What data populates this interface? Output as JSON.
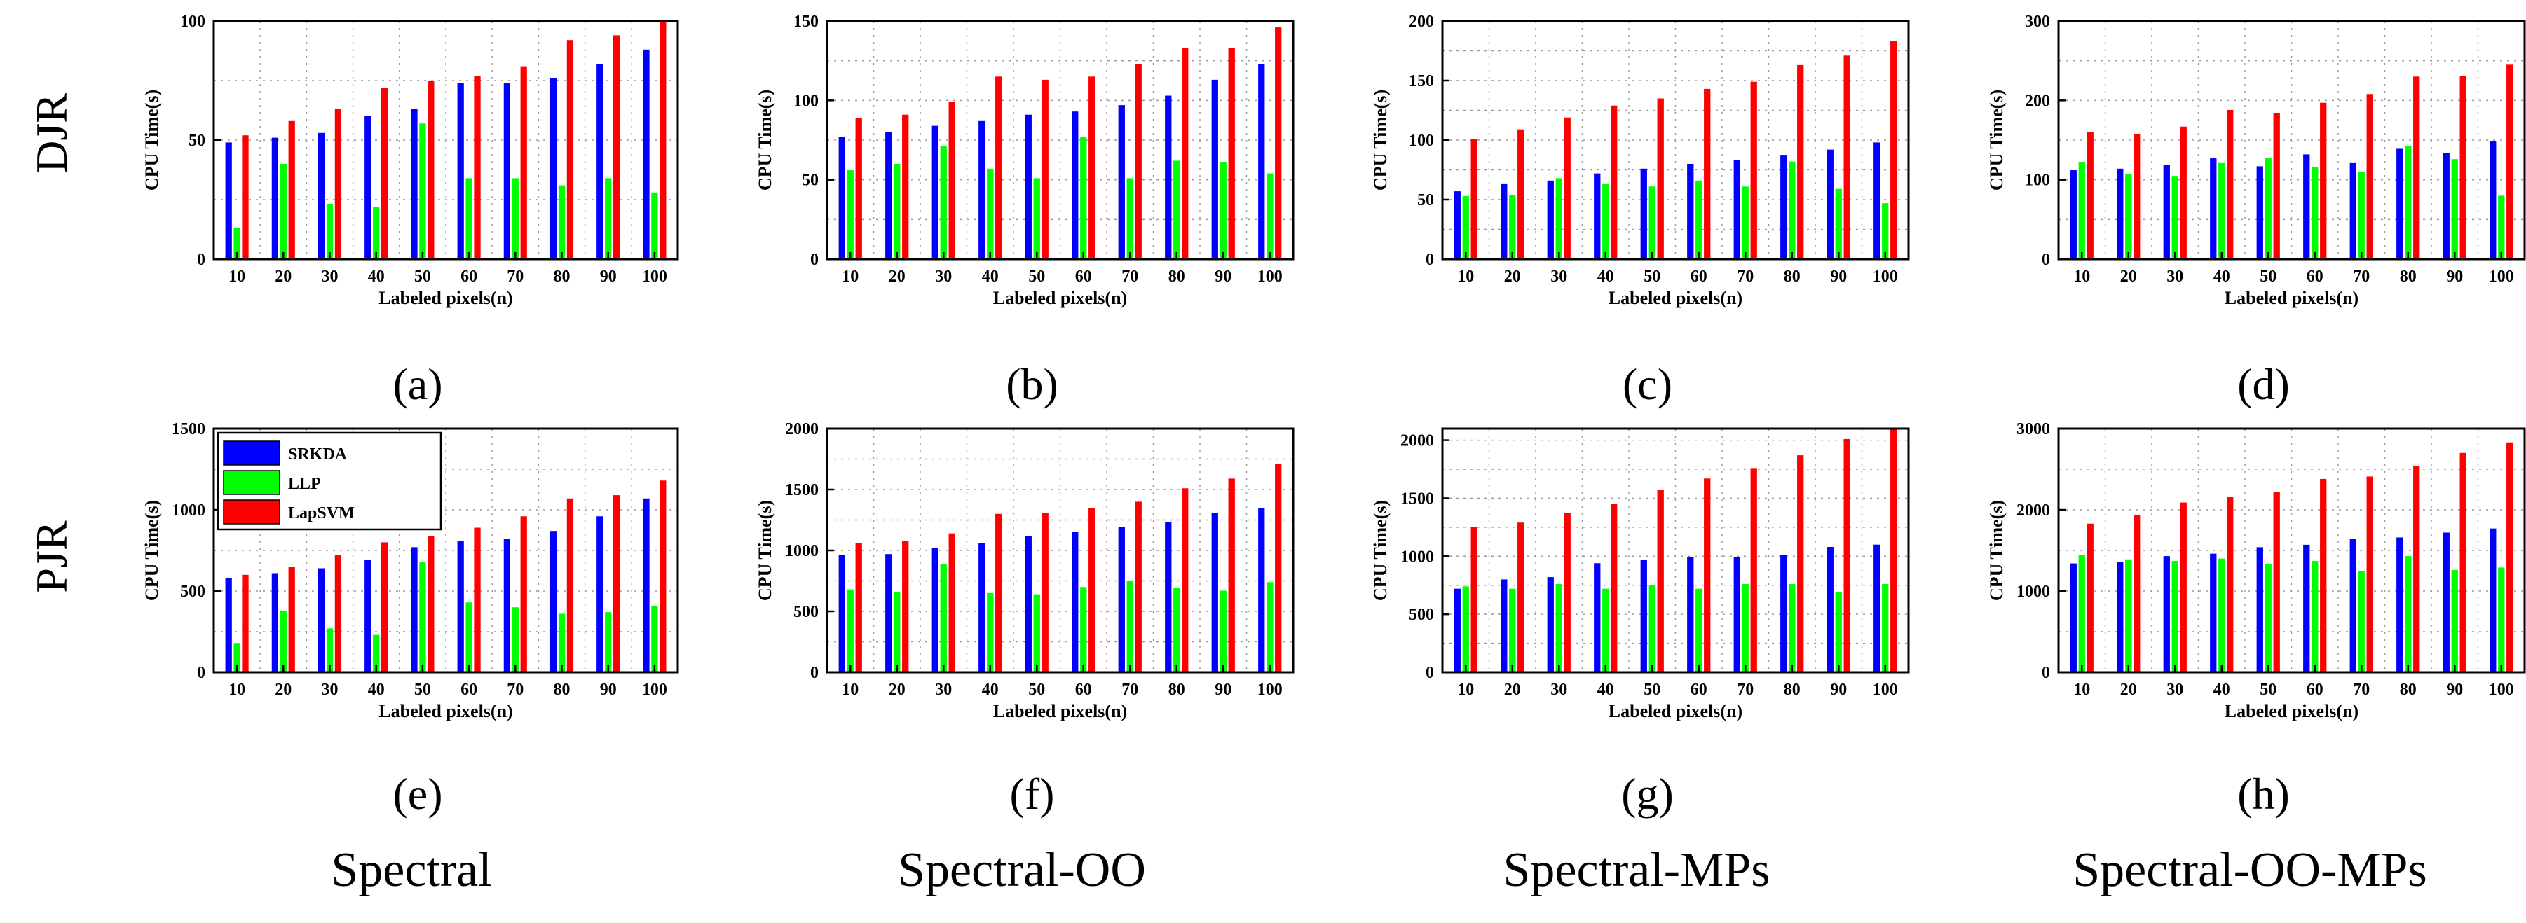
{
  "figure": {
    "row_labels": [
      "DJR",
      "PJR"
    ],
    "column_labels": [
      "Spectral",
      "Spectral-OO",
      "Spectral-MPs",
      "Spectral-OO-MPs"
    ],
    "colors": {
      "SRKDA": "#0000ff",
      "LLP": "#00ff00",
      "LapSVM": "#ff0000"
    }
  },
  "chart_data": [
    {
      "id": "a",
      "caption": "(a)",
      "type": "bar",
      "xlabel": "Labeled pixels(n)",
      "ylabel": "CPU Time(s)",
      "categories": [
        "10",
        "20",
        "30",
        "40",
        "50",
        "60",
        "70",
        "80",
        "90",
        "100"
      ],
      "ylim": [
        0,
        100
      ],
      "yticks": [
        0,
        50,
        100
      ],
      "series": [
        {
          "name": "SRKDA",
          "values": [
            49,
            51,
            53,
            60,
            63,
            74,
            74,
            76,
            82,
            88
          ]
        },
        {
          "name": "LLP",
          "values": [
            13,
            40,
            23,
            22,
            57,
            34,
            34,
            31,
            34,
            28
          ]
        },
        {
          "name": "LapSVM",
          "values": [
            52,
            58,
            63,
            72,
            75,
            77,
            81,
            92,
            94,
            100
          ]
        }
      ]
    },
    {
      "id": "b",
      "caption": "(b)",
      "type": "bar",
      "xlabel": "Labeled pixels(n)",
      "ylabel": "CPU Time(s)",
      "categories": [
        "10",
        "20",
        "30",
        "40",
        "50",
        "60",
        "70",
        "80",
        "90",
        "100"
      ],
      "ylim": [
        0,
        150
      ],
      "yticks": [
        0,
        50,
        100,
        150
      ],
      "series": [
        {
          "name": "SRKDA",
          "values": [
            77,
            80,
            84,
            87,
            91,
            93,
            97,
            103,
            113,
            123
          ]
        },
        {
          "name": "LLP",
          "values": [
            56,
            60,
            71,
            57,
            51,
            77,
            51,
            62,
            61,
            54
          ]
        },
        {
          "name": "LapSVM",
          "values": [
            89,
            91,
            99,
            115,
            113,
            115,
            123,
            133,
            133,
            146
          ]
        }
      ]
    },
    {
      "id": "c",
      "caption": "(c)",
      "type": "bar",
      "xlabel": "Labeled pixels(n)",
      "ylabel": "CPU Time(s)",
      "categories": [
        "10",
        "20",
        "30",
        "40",
        "50",
        "60",
        "70",
        "80",
        "90",
        "100"
      ],
      "ylim": [
        0,
        200
      ],
      "yticks": [
        0,
        50,
        100,
        150,
        200
      ],
      "series": [
        {
          "name": "SRKDA",
          "values": [
            57,
            63,
            66,
            72,
            76,
            80,
            83,
            87,
            92,
            98
          ]
        },
        {
          "name": "LLP",
          "values": [
            53,
            54,
            68,
            63,
            61,
            66,
            61,
            82,
            59,
            47
          ]
        },
        {
          "name": "LapSVM",
          "values": [
            101,
            109,
            119,
            129,
            135,
            143,
            149,
            163,
            171,
            183
          ]
        }
      ]
    },
    {
      "id": "d",
      "caption": "(d)",
      "type": "bar",
      "xlabel": "Labeled pixels(n)",
      "ylabel": "CPU Time(s)",
      "categories": [
        "10",
        "20",
        "30",
        "40",
        "50",
        "60",
        "70",
        "80",
        "90",
        "100"
      ],
      "ylim": [
        0,
        300
      ],
      "yticks": [
        0,
        100,
        200,
        300
      ],
      "series": [
        {
          "name": "SRKDA",
          "values": [
            112,
            114,
            119,
            127,
            117,
            132,
            121,
            139,
            134,
            149
          ]
        },
        {
          "name": "LLP",
          "values": [
            122,
            107,
            104,
            121,
            127,
            116,
            110,
            143,
            126,
            80
          ]
        },
        {
          "name": "LapSVM",
          "values": [
            160,
            158,
            167,
            188,
            184,
            197,
            208,
            230,
            231,
            245
          ]
        }
      ]
    },
    {
      "id": "e",
      "caption": "(e)",
      "type": "bar",
      "xlabel": "Labeled pixels(n)",
      "ylabel": "CPU Time(s)",
      "categories": [
        "10",
        "20",
        "30",
        "40",
        "50",
        "60",
        "70",
        "80",
        "90",
        "100"
      ],
      "ylim": [
        0,
        1500
      ],
      "yticks": [
        0,
        500,
        1000,
        1500
      ],
      "legend": {
        "position": "top-left",
        "entries": [
          "SRKDA",
          "LLP",
          "LapSVM"
        ]
      },
      "series": [
        {
          "name": "SRKDA",
          "values": [
            580,
            610,
            640,
            690,
            770,
            810,
            820,
            870,
            960,
            1070
          ]
        },
        {
          "name": "LLP",
          "values": [
            180,
            380,
            270,
            230,
            680,
            430,
            400,
            360,
            370,
            410
          ]
        },
        {
          "name": "LapSVM",
          "values": [
            600,
            650,
            720,
            800,
            840,
            890,
            960,
            1070,
            1090,
            1180
          ]
        }
      ]
    },
    {
      "id": "f",
      "caption": "(f)",
      "type": "bar",
      "xlabel": "Labeled pixels(n)",
      "ylabel": "CPU Time(s)",
      "categories": [
        "10",
        "20",
        "30",
        "40",
        "50",
        "60",
        "70",
        "80",
        "90",
        "100"
      ],
      "ylim": [
        0,
        2000
      ],
      "yticks": [
        0,
        500,
        1000,
        1500,
        2000
      ],
      "series": [
        {
          "name": "SRKDA",
          "values": [
            960,
            970,
            1020,
            1060,
            1120,
            1150,
            1190,
            1230,
            1310,
            1350
          ]
        },
        {
          "name": "LLP",
          "values": [
            680,
            660,
            890,
            650,
            640,
            700,
            750,
            690,
            670,
            740
          ]
        },
        {
          "name": "LapSVM",
          "values": [
            1060,
            1080,
            1140,
            1300,
            1310,
            1350,
            1400,
            1510,
            1590,
            1710
          ]
        }
      ]
    },
    {
      "id": "g",
      "caption": "(g)",
      "type": "bar",
      "xlabel": "Labeled pixels(n)",
      "ylabel": "CPU Time(s)",
      "categories": [
        "10",
        "20",
        "30",
        "40",
        "50",
        "60",
        "70",
        "80",
        "90",
        "100"
      ],
      "ylim": [
        0,
        2100
      ],
      "yticks": [
        0,
        500,
        1000,
        1500,
        2000
      ],
      "series": [
        {
          "name": "SRKDA",
          "values": [
            720,
            800,
            820,
            940,
            970,
            990,
            990,
            1010,
            1080,
            1100
          ]
        },
        {
          "name": "LLP",
          "values": [
            740,
            720,
            760,
            720,
            750,
            720,
            760,
            760,
            690,
            760
          ]
        },
        {
          "name": "LapSVM",
          "values": [
            1250,
            1290,
            1370,
            1450,
            1570,
            1670,
            1760,
            1870,
            2010,
            2110
          ]
        }
      ]
    },
    {
      "id": "h",
      "caption": "(h)",
      "type": "bar",
      "xlabel": "Labeled pixels(n)",
      "ylabel": "CPU Time(s)",
      "categories": [
        "10",
        "20",
        "30",
        "40",
        "50",
        "60",
        "70",
        "80",
        "90",
        "100"
      ],
      "ylim": [
        0,
        3000
      ],
      "yticks": [
        0,
        1000,
        2000,
        3000
      ],
      "series": [
        {
          "name": "SRKDA",
          "values": [
            1340,
            1360,
            1430,
            1460,
            1540,
            1570,
            1640,
            1660,
            1720,
            1770
          ]
        },
        {
          "name": "LLP",
          "values": [
            1440,
            1390,
            1370,
            1400,
            1330,
            1370,
            1250,
            1430,
            1260,
            1290
          ]
        },
        {
          "name": "LapSVM",
          "values": [
            1830,
            1940,
            2090,
            2160,
            2220,
            2380,
            2410,
            2540,
            2700,
            2830
          ]
        }
      ]
    }
  ]
}
